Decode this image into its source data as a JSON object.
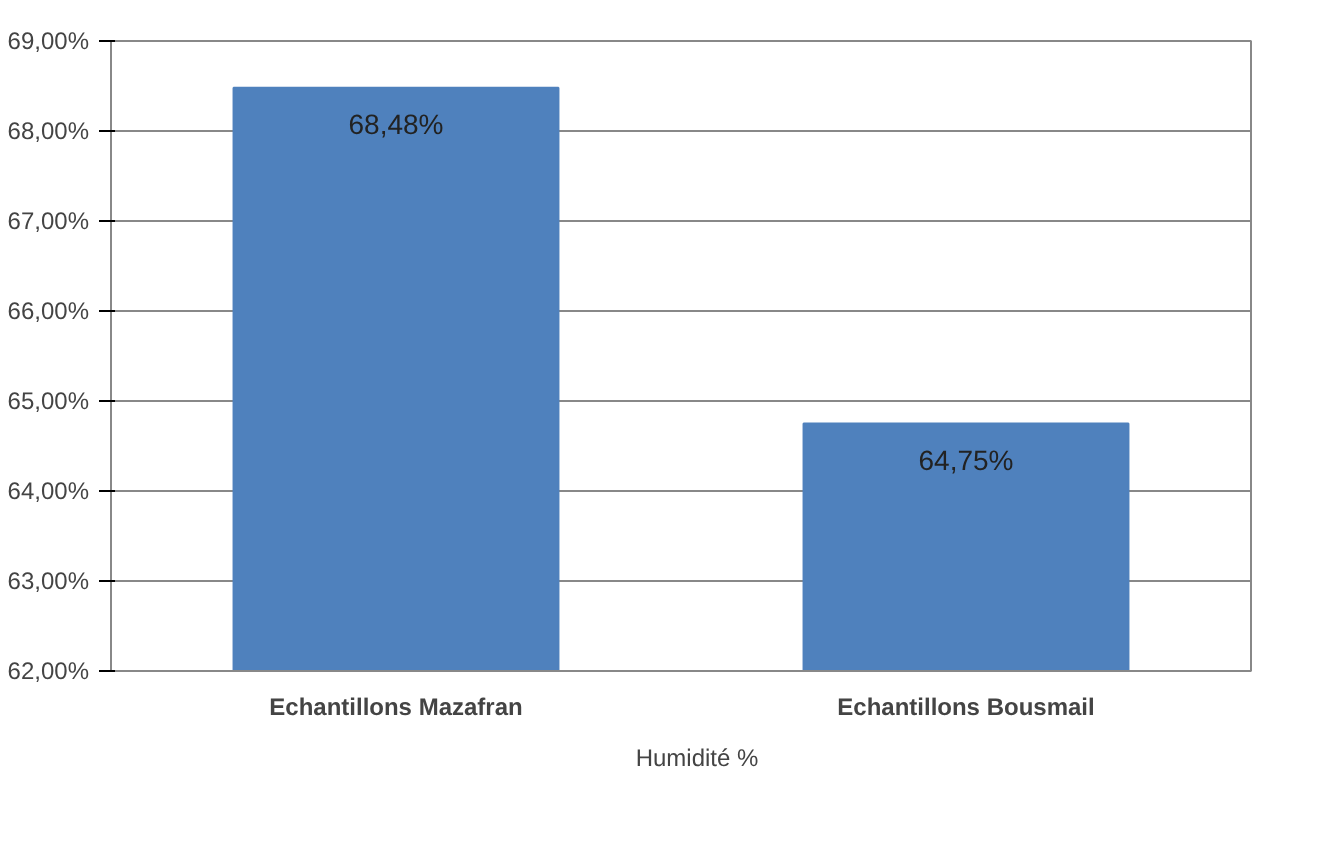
{
  "chart_data": {
    "type": "bar",
    "categories": [
      "Echantillons Mazafran",
      "Echantillons Bousmail"
    ],
    "series": [
      {
        "name": "Humidité %",
        "color": "#4f81bd",
        "values": [
          68.48,
          64.75
        ],
        "value_labels": [
          "68,48%",
          "64,75%"
        ]
      }
    ],
    "ylim": [
      62,
      69
    ],
    "yticks": [
      {
        "value": 62,
        "label": "62,00%"
      },
      {
        "value": 63,
        "label": "63,00%"
      },
      {
        "value": 64,
        "label": "64,00%"
      },
      {
        "value": 65,
        "label": "65,00%"
      },
      {
        "value": 66,
        "label": "66,00%"
      },
      {
        "value": 67,
        "label": "67,00%"
      },
      {
        "value": 68,
        "label": "68,00%"
      },
      {
        "value": 69,
        "label": "69,00%"
      }
    ],
    "grid": "y",
    "legend": "bottom"
  }
}
